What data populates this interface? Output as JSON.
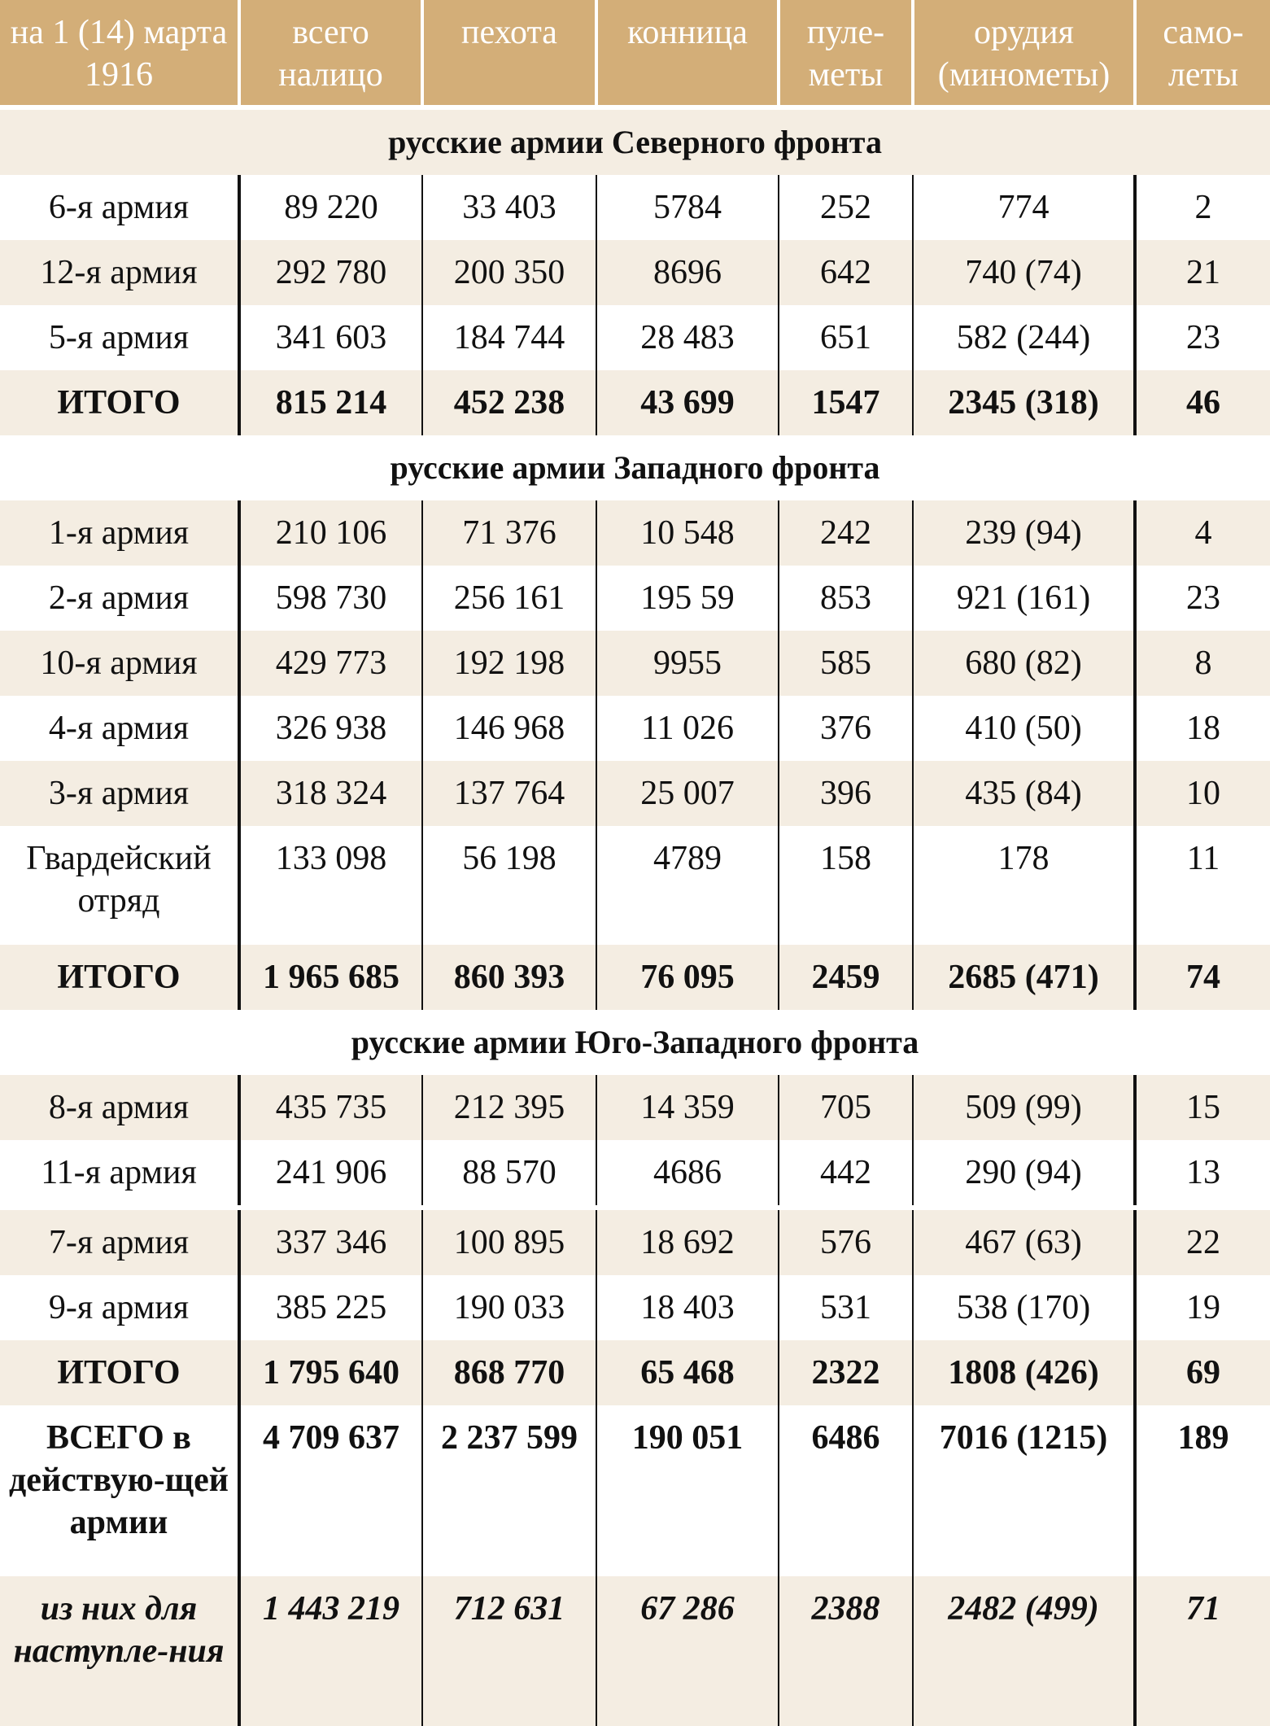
{
  "header": [
    "на 1 (14) марта 1916",
    "всего налицо",
    "пехота",
    "конница",
    "пуле-\nметы",
    "орудия (минометы)",
    "само-\nлеты"
  ],
  "colors": {
    "header_bg": "#d3ae78",
    "stripe": "#f4ede2"
  },
  "sections": [
    {
      "title": "русские армии Северного фронта",
      "rows": [
        [
          "6-я армия",
          "89 220",
          "33 403",
          "5784",
          "252",
          "774",
          "2"
        ],
        [
          "12-я армия",
          "292 780",
          "200 350",
          "8696",
          "642",
          "740 (74)",
          "21"
        ],
        [
          "5-я армия",
          "341 603",
          "184 744",
          "28 483",
          "651",
          "582 (244)",
          "23"
        ]
      ],
      "total": [
        "ИТОГО",
        "815 214",
        "452 238",
        "43 699",
        "1547",
        "2345 (318)",
        "46"
      ]
    },
    {
      "title": "русские армии Западного фронта",
      "rows": [
        [
          "1-я армия",
          "210 106",
          "71 376",
          "10 548",
          "242",
          "239 (94)",
          "4"
        ],
        [
          "2-я армия",
          "598 730",
          "256 161",
          "195 59",
          "853",
          "921 (161)",
          "23"
        ],
        [
          "10-я армия",
          "429 773",
          "192 198",
          "9955",
          "585",
          "680 (82)",
          "8"
        ],
        [
          "4-я армия",
          "326 938",
          "146 968",
          "11 026",
          "376",
          "410 (50)",
          "18"
        ],
        [
          "3-я армия",
          "318 324",
          "137 764",
          "25 007",
          "396",
          "435 (84)",
          "10"
        ],
        [
          "Гвардейский отряд",
          "133 098",
          "56 198",
          "4789",
          "158",
          "178",
          "11"
        ]
      ],
      "total": [
        "ИТОГО",
        "1 965 685",
        "860 393",
        "76 095",
        "2459",
        "2685 (471)",
        "74"
      ]
    },
    {
      "title": "русские армии Юго-Западного фронта",
      "rows": [
        [
          "8-я армия",
          "435 735",
          "212 395",
          "14 359",
          "705",
          "509 (99)",
          "15"
        ],
        [
          "11-я армия",
          "241 906",
          "88 570",
          "4686",
          "442",
          "290 (94)",
          "13"
        ],
        [
          "7-я армия",
          "337 346",
          "100 895",
          "18 692",
          "576",
          "467 (63)",
          "22"
        ],
        [
          "9-я армия",
          "385 225",
          "190 033",
          "18 403",
          "531",
          "538 (170)",
          "19"
        ]
      ],
      "total": [
        "ИТОГО",
        "1 795 640",
        "868 770",
        "65 468",
        "2322",
        "1808 (426)",
        "69"
      ]
    }
  ],
  "grand_total": [
    "ВСЕГО в действую-щей армии",
    "4 709 637",
    "2 237 599",
    "190 051",
    "6486",
    "7016 (1215)",
    "189"
  ],
  "offensive": [
    "из них для наступле-ния",
    "1 443 219",
    "712 631",
    "67 286",
    "2388",
    "2482 (499)",
    "71"
  ]
}
